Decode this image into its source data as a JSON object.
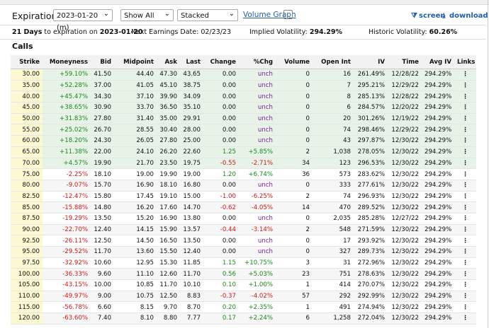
{
  "controls": {
    "expiration_label": "Expiration:",
    "expiration": "2023-01-20 (m)",
    "filter": "Show All",
    "layout": "Stacked",
    "volume_graph": "Volume Graph",
    "screen": "screen",
    "download": "download"
  },
  "info": {
    "days": "21 Days",
    "days_text": "to expiration on",
    "date": "2023-01-20",
    "earnings": "Next Earnings Date: 02/23/23",
    "iv_label": "Implied Volatility:",
    "iv": "294.29%",
    "hv_label": "Historic Volatility:",
    "hv": "60.26%"
  },
  "section": "Calls",
  "table": {
    "columns": [
      "Strike",
      "Moneyness",
      "Bid",
      "Midpoint",
      "Ask",
      "Last",
      "Change",
      "%Chg",
      "Volume",
      "Open Int",
      "IV",
      "Time",
      "Avg IV",
      "Links"
    ],
    "rows": [
      [
        "30.00",
        "+59.10%",
        "41.50",
        "44.40",
        "47.30",
        "43.65",
        "0.00",
        "unch",
        "0",
        "16",
        "261.49%",
        "12/28/22",
        "294.29%"
      ],
      [
        "35.00",
        "+52.28%",
        "37.00",
        "41.05",
        "45.10",
        "38.75",
        "0.00",
        "unch",
        "0",
        "7",
        "295.21%",
        "12/29/22",
        "294.29%"
      ],
      [
        "40.00",
        "+45.47%",
        "34.30",
        "37.10",
        "39.90",
        "34.09",
        "0.00",
        "unch",
        "0",
        "8",
        "285.13%",
        "12/28/22",
        "294.29%"
      ],
      [
        "45.00",
        "+38.65%",
        "30.90",
        "33.70",
        "36.50",
        "35.10",
        "0.00",
        "unch",
        "0",
        "6",
        "284.57%",
        "12/20/22",
        "294.29%"
      ],
      [
        "50.00",
        "+31.83%",
        "27.80",
        "31.40",
        "35.00",
        "29.91",
        "0.00",
        "unch",
        "0",
        "20",
        "301.26%",
        "12/19/22",
        "294.29%"
      ],
      [
        "55.00",
        "+25.02%",
        "26.70",
        "28.55",
        "30.40",
        "28.00",
        "0.00",
        "unch",
        "0",
        "74",
        "298.46%",
        "12/29/22",
        "294.29%"
      ],
      [
        "60.00",
        "+18.20%",
        "24.30",
        "26.05",
        "27.80",
        "25.00",
        "0.00",
        "unch",
        "0",
        "43",
        "297.87%",
        "12/30/22",
        "294.29%"
      ],
      [
        "65.00",
        "+11.38%",
        "22.00",
        "24.10",
        "26.20",
        "22.60",
        "1.25",
        "+5.85%",
        "2",
        "1,038",
        "278.05%",
        "12/30/22",
        "294.29%"
      ],
      [
        "70.00",
        "+4.57%",
        "19.90",
        "21.70",
        "23.50",
        "19.75",
        "-0.55",
        "-2.71%",
        "34",
        "123",
        "296.53%",
        "12/30/22",
        "294.29%"
      ],
      [
        "75.00",
        "-2.25%",
        "18.10",
        "19.00",
        "19.90",
        "19.00",
        "1.20",
        "+6.74%",
        "36",
        "573",
        "283.62%",
        "12/30/22",
        "294.29%"
      ],
      [
        "80.00",
        "-9.07%",
        "15.70",
        "16.90",
        "18.10",
        "16.80",
        "0.00",
        "unch",
        "0",
        "333",
        "277.61%",
        "12/30/22",
        "294.29%"
      ],
      [
        "82.50",
        "-12.47%",
        "15.80",
        "17.45",
        "19.10",
        "15.00",
        "-1.00",
        "-6.25%",
        "2",
        "74",
        "296.93%",
        "12/30/22",
        "294.29%"
      ],
      [
        "85.00",
        "-15.88%",
        "14.80",
        "16.20",
        "17.60",
        "14.70",
        "-0.62",
        "-4.05%",
        "14",
        "470",
        "289.52%",
        "12/30/22",
        "294.29%"
      ],
      [
        "87.50",
        "-19.29%",
        "13.50",
        "15.20",
        "16.90",
        "13.80",
        "0.00",
        "unch",
        "0",
        "2,035",
        "285.28%",
        "12/27/22",
        "294.29%"
      ],
      [
        "90.00",
        "-22.70%",
        "12.40",
        "14.15",
        "15.90",
        "13.57",
        "-0.44",
        "-3.14%",
        "2",
        "548",
        "271.59%",
        "12/30/22",
        "294.29%"
      ],
      [
        "92.50",
        "-26.11%",
        "12.50",
        "14.50",
        "16.50",
        "13.50",
        "0.00",
        "unch",
        "0",
        "17",
        "293.92%",
        "12/30/22",
        "294.29%"
      ],
      [
        "95.00",
        "-29.52%",
        "11.70",
        "13.60",
        "15.50",
        "12.40",
        "0.00",
        "unch",
        "0",
        "327",
        "289.73%",
        "12/30/22",
        "294.29%"
      ],
      [
        "97.50",
        "-32.92%",
        "10.60",
        "12.95",
        "15.30",
        "11.85",
        "1.15",
        "+10.75%",
        "3",
        "31",
        "272.96%",
        "12/30/22",
        "294.29%"
      ],
      [
        "100.00",
        "-36.33%",
        "9.60",
        "11.10",
        "12.60",
        "11.70",
        "0.56",
        "+5.03%",
        "23",
        "751",
        "278.63%",
        "12/30/22",
        "294.29%"
      ],
      [
        "105.00",
        "-43.15%",
        "10.00",
        "10.85",
        "11.70",
        "10.10",
        "0.10",
        "+1.00%",
        "1",
        "414",
        "270.07%",
        "12/30/22",
        "294.29%"
      ],
      [
        "110.00",
        "-49.97%",
        "9.00",
        "10.75",
        "12.50",
        "8.83",
        "-0.37",
        "-4.02%",
        "57",
        "292",
        "292.99%",
        "12/30/22",
        "294.29%"
      ],
      [
        "115.00",
        "-56.78%",
        "6.60",
        "8.15",
        "9.70",
        "8.70",
        "0.20",
        "+2.35%",
        "1",
        "491",
        "274.94%",
        "12/30/22",
        "294.29%"
      ],
      [
        "120.00",
        "-63.60%",
        "7.40",
        "8.10",
        "8.80",
        "7.77",
        "0.17",
        "+2.24%",
        "6",
        "1,258",
        "272.04%",
        "12/30/22",
        "294.29%"
      ]
    ],
    "itm_rows": 9
  }
}
